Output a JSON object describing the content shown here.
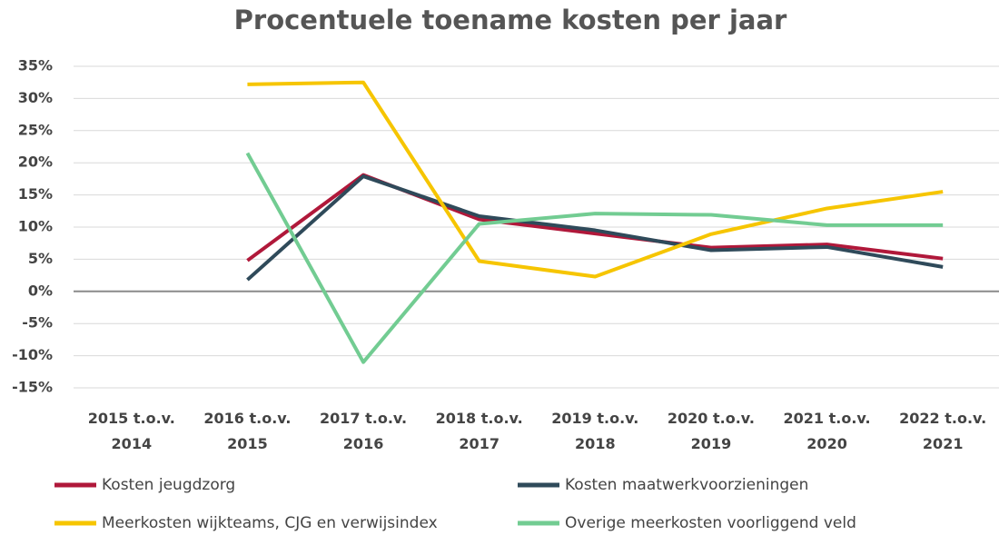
{
  "chart_data": {
    "type": "line",
    "title": "Procentuele toename kosten per jaar",
    "categories": [
      "2015 t.o.v. 2014",
      "2016 t.o.v. 2015",
      "2017 t.o.v. 2016",
      "2018 t.o.v. 2017",
      "2019 t.o.v. 2018",
      "2020 t.o.v. 2019",
      "2021 t.o.v. 2020",
      "2022 t.o.v. 2021"
    ],
    "series": [
      {
        "name": "Kosten jeugdzorg",
        "color": "#b0183a",
        "values": [
          null,
          4.8,
          18.1,
          11.2,
          9.0,
          6.8,
          7.3,
          5.1
        ]
      },
      {
        "name": "Kosten maatwerkvoorzieningen",
        "color": "#2f4a5a",
        "values": [
          null,
          1.8,
          17.9,
          11.7,
          9.5,
          6.4,
          6.9,
          3.8
        ]
      },
      {
        "name": "Meerkosten wijkteams, CJG en verwijsindex",
        "color": "#f6c500",
        "values": [
          null,
          32.2,
          32.5,
          4.7,
          2.3,
          8.9,
          12.9,
          15.5
        ]
      },
      {
        "name": "Overige meerkosten voorliggend veld",
        "color": "#72cc92",
        "values": [
          null,
          21.5,
          -11.0,
          10.5,
          12.1,
          11.9,
          10.3,
          10.3
        ]
      }
    ],
    "ylim": [
      -15,
      35
    ],
    "yticks": [
      {
        "value": -15,
        "label": "-15%"
      },
      {
        "value": -10,
        "label": "-10%"
      },
      {
        "value": -5,
        "label": "-5%"
      },
      {
        "value": 0,
        "label": "0%"
      },
      {
        "value": 5,
        "label": "5%"
      },
      {
        "value": 10,
        "label": "10%"
      },
      {
        "value": 15,
        "label": "15%"
      },
      {
        "value": 20,
        "label": "20%"
      },
      {
        "value": 25,
        "label": "25%"
      },
      {
        "value": 30,
        "label": "30%"
      },
      {
        "value": 35,
        "label": "35%"
      }
    ],
    "grid": true
  }
}
